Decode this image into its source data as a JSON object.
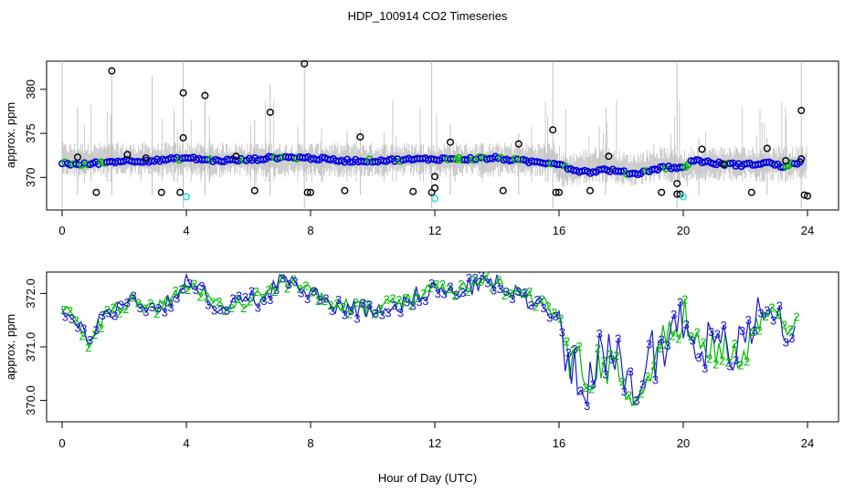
{
  "title": "HDP_100914  CO2 Timeseries",
  "colors": {
    "raw_gray": "#bfbfbf",
    "median_blue": "#0000dd",
    "outlier_black": "#000000",
    "flag_cyan": "#33dddd",
    "label2_green": "#00bb00",
    "label3_blue": "#1a1acc"
  },
  "chart_data": [
    {
      "type": "scatter",
      "name": "top-panel",
      "ylabel": "approx. ppm",
      "xlabel": "",
      "xlim": [
        -0.5,
        25
      ],
      "ylim": [
        366.3,
        383.2
      ],
      "x_ticks": [
        0,
        4,
        8,
        12,
        16,
        20,
        24
      ],
      "x_tick_labels": [
        "0",
        "4",
        "8",
        "12",
        "16",
        "20",
        "24"
      ],
      "y_ticks": [
        370,
        375,
        380
      ],
      "y_tick_labels": [
        "370",
        "375",
        "380"
      ],
      "raw_spikes": [
        {
          "x": 0.0,
          "ymin": 366.5,
          "ymax": 383.2
        },
        {
          "x": 0.5,
          "ymin": 368.0,
          "ymax": 378.0
        },
        {
          "x": 1.6,
          "ymin": 368.0,
          "ymax": 382.5
        },
        {
          "x": 2.9,
          "ymin": 368.0,
          "ymax": 381.5
        },
        {
          "x": 3.9,
          "ymin": 366.5,
          "ymax": 383.2
        },
        {
          "x": 4.6,
          "ymin": 368.0,
          "ymax": 380.0
        },
        {
          "x": 6.2,
          "ymin": 368.0,
          "ymax": 376.5
        },
        {
          "x": 6.7,
          "ymin": 368.0,
          "ymax": 380.5
        },
        {
          "x": 7.8,
          "ymin": 366.5,
          "ymax": 383.2
        },
        {
          "x": 9.6,
          "ymin": 368.0,
          "ymax": 375.5
        },
        {
          "x": 11.9,
          "ymin": 366.5,
          "ymax": 383.2
        },
        {
          "x": 12.5,
          "ymin": 368.0,
          "ymax": 376.0
        },
        {
          "x": 14.7,
          "ymin": 368.0,
          "ymax": 375.0
        },
        {
          "x": 15.8,
          "ymin": 366.5,
          "ymax": 383.2
        },
        {
          "x": 17.5,
          "ymin": 368.0,
          "ymax": 374.0
        },
        {
          "x": 19.8,
          "ymin": 366.5,
          "ymax": 383.2
        },
        {
          "x": 20.5,
          "ymin": 368.0,
          "ymax": 374.5
        },
        {
          "x": 22.7,
          "ymin": 368.0,
          "ymax": 374.5
        },
        {
          "x": 23.8,
          "ymin": 366.5,
          "ymax": 383.2
        }
      ],
      "outliers": [
        {
          "x": 0.5,
          "y": 372.3
        },
        {
          "x": 1.1,
          "y": 368.3
        },
        {
          "x": 1.6,
          "y": 382.1
        },
        {
          "x": 2.1,
          "y": 372.6
        },
        {
          "x": 2.7,
          "y": 372.2
        },
        {
          "x": 3.2,
          "y": 368.3
        },
        {
          "x": 3.8,
          "y": 368.3
        },
        {
          "x": 3.9,
          "y": 374.5
        },
        {
          "x": 3.9,
          "y": 379.6
        },
        {
          "x": 4.6,
          "y": 379.3
        },
        {
          "x": 5.6,
          "y": 372.4
        },
        {
          "x": 6.2,
          "y": 368.5
        },
        {
          "x": 6.7,
          "y": 377.4
        },
        {
          "x": 7.8,
          "y": 382.9
        },
        {
          "x": 7.9,
          "y": 368.3
        },
        {
          "x": 8.0,
          "y": 368.3
        },
        {
          "x": 9.1,
          "y": 368.5
        },
        {
          "x": 9.6,
          "y": 374.6
        },
        {
          "x": 11.3,
          "y": 368.4
        },
        {
          "x": 11.9,
          "y": 368.3
        },
        {
          "x": 12.0,
          "y": 368.8
        },
        {
          "x": 12.0,
          "y": 370.1
        },
        {
          "x": 12.5,
          "y": 374.0
        },
        {
          "x": 14.2,
          "y": 368.5
        },
        {
          "x": 14.7,
          "y": 373.8
        },
        {
          "x": 15.8,
          "y": 375.4
        },
        {
          "x": 15.9,
          "y": 368.3
        },
        {
          "x": 16.0,
          "y": 368.3
        },
        {
          "x": 17.0,
          "y": 368.5
        },
        {
          "x": 17.6,
          "y": 372.4
        },
        {
          "x": 19.3,
          "y": 368.3
        },
        {
          "x": 19.8,
          "y": 369.3
        },
        {
          "x": 19.8,
          "y": 368.1
        },
        {
          "x": 19.9,
          "y": 368.1
        },
        {
          "x": 20.6,
          "y": 373.2
        },
        {
          "x": 21.3,
          "y": 371.5
        },
        {
          "x": 22.2,
          "y": 368.3
        },
        {
          "x": 22.7,
          "y": 373.3
        },
        {
          "x": 23.3,
          "y": 371.9
        },
        {
          "x": 23.8,
          "y": 377.6
        },
        {
          "x": 23.8,
          "y": 372.1
        },
        {
          "x": 23.9,
          "y": 368.0
        },
        {
          "x": 24.0,
          "y": 367.9
        }
      ],
      "flagged": [
        {
          "x": 4.0,
          "y": 367.8
        },
        {
          "x": 12.0,
          "y": 367.6
        },
        {
          "x": 20.0,
          "y": 367.8
        }
      ]
    },
    {
      "type": "line",
      "name": "bottom-panel",
      "ylabel": "approx. ppm",
      "xlabel": "Hour of Day (UTC)",
      "xlim": [
        -0.5,
        25
      ],
      "ylim": [
        369.6,
        372.4
      ],
      "x_ticks": [
        0,
        4,
        8,
        12,
        16,
        20,
        24
      ],
      "x_tick_labels": [
        "0",
        "4",
        "8",
        "12",
        "16",
        "20",
        "24"
      ],
      "y_ticks": [
        370.0,
        371.0,
        372.0
      ],
      "y_tick_labels": [
        "370.0",
        "371.0",
        "372.0"
      ],
      "series": [
        {
          "name": "2",
          "marker": "2"
        },
        {
          "name": "3",
          "marker": "3"
        }
      ],
      "hour_anchors": [
        [
          0.0,
          371.8
        ],
        [
          0.3,
          371.5
        ],
        [
          0.6,
          371.3
        ],
        [
          0.8,
          371.1
        ],
        [
          1.0,
          371.3
        ],
        [
          1.3,
          371.6
        ],
        [
          1.6,
          371.7
        ],
        [
          2.0,
          371.8
        ],
        [
          2.3,
          371.9
        ],
        [
          2.6,
          371.8
        ],
        [
          3.0,
          371.7
        ],
        [
          3.5,
          371.9
        ],
        [
          4.0,
          372.2
        ],
        [
          4.3,
          372.1
        ],
        [
          4.8,
          371.9
        ],
        [
          5.2,
          371.7
        ],
        [
          5.6,
          371.8
        ],
        [
          6.0,
          371.9
        ],
        [
          6.5,
          371.9
        ],
        [
          7.0,
          372.3
        ],
        [
          7.3,
          372.2
        ],
        [
          7.6,
          372.0
        ],
        [
          8.0,
          372.1
        ],
        [
          8.3,
          371.9
        ],
        [
          8.6,
          371.8
        ],
        [
          9.0,
          371.8
        ],
        [
          9.5,
          371.7
        ],
        [
          10.0,
          371.7
        ],
        [
          10.5,
          371.8
        ],
        [
          11.0,
          371.8
        ],
        [
          11.5,
          372.0
        ],
        [
          12.0,
          372.1
        ],
        [
          12.5,
          372.0
        ],
        [
          13.0,
          372.1
        ],
        [
          13.5,
          372.2
        ],
        [
          14.0,
          372.2
        ],
        [
          14.5,
          372.0
        ],
        [
          15.0,
          371.9
        ],
        [
          15.5,
          371.8
        ],
        [
          15.8,
          371.7
        ],
        [
          16.0,
          371.5
        ],
        [
          16.2,
          370.9
        ],
        [
          16.5,
          370.7
        ],
        [
          16.8,
          370.5
        ],
        [
          17.0,
          370.4
        ],
        [
          17.3,
          370.8
        ],
        [
          17.6,
          370.7
        ],
        [
          18.0,
          370.6
        ],
        [
          18.3,
          370.1
        ],
        [
          18.6,
          370.5
        ],
        [
          19.0,
          370.9
        ],
        [
          19.3,
          371.0
        ],
        [
          19.6,
          371.3
        ],
        [
          20.0,
          371.5
        ],
        [
          20.3,
          371.2
        ],
        [
          20.6,
          371.2
        ],
        [
          21.0,
          370.8
        ],
        [
          21.4,
          371.0
        ],
        [
          21.8,
          370.9
        ],
        [
          22.0,
          371.1
        ],
        [
          22.4,
          371.6
        ],
        [
          22.8,
          371.7
        ],
        [
          23.1,
          371.6
        ],
        [
          23.3,
          371.1
        ],
        [
          23.5,
          371.3
        ],
        [
          23.7,
          371.6
        ]
      ]
    }
  ]
}
